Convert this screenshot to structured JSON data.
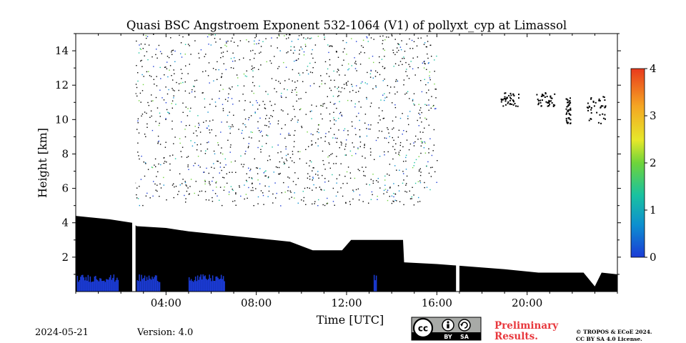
{
  "chart_data": {
    "type": "heatmap",
    "title": "Quasi BSC Angstroem Exponent 532-1064 (V1) of pollyxt_cyp at Limassol",
    "xlabel": "Time [UTC]",
    "ylabel": "Height [km]",
    "xlim_hours": [
      0,
      24
    ],
    "ylim_km": [
      0,
      15
    ],
    "x_ticks": [
      {
        "hour": 4,
        "label": "04:00"
      },
      {
        "hour": 8,
        "label": "08:00"
      },
      {
        "hour": 12,
        "label": "12:00"
      },
      {
        "hour": 16,
        "label": "16:00"
      },
      {
        "hour": 20,
        "label": "20:00"
      }
    ],
    "y_ticks": [
      {
        "value": 2,
        "label": "2"
      },
      {
        "value": 4,
        "label": "4"
      },
      {
        "value": 6,
        "label": "6"
      },
      {
        "value": 8,
        "label": "8"
      },
      {
        "value": 10,
        "label": "10"
      },
      {
        "value": 12,
        "label": "12"
      },
      {
        "value": 14,
        "label": "14"
      }
    ],
    "colorbar": {
      "min": 0,
      "max": 4,
      "ticks": [
        {
          "value": 0,
          "label": "0"
        },
        {
          "value": 1,
          "label": "1"
        },
        {
          "value": 2,
          "label": "2"
        },
        {
          "value": 3,
          "label": "3"
        },
        {
          "value": 4,
          "label": "4"
        }
      ],
      "colormap": [
        "#1b3bd6",
        "#0d8fd0",
        "#19c2a0",
        "#6fd43a",
        "#e6e82a",
        "#f5a623",
        "#e83a1d"
      ]
    },
    "data_gaps_hours": [
      [
        2.5,
        2.65
      ],
      [
        16.85,
        17.0
      ]
    ],
    "layer_top_profile_km": [
      [
        0.0,
        4.4
      ],
      [
        1.5,
        4.2
      ],
      [
        2.5,
        4.0
      ],
      [
        2.7,
        3.8
      ],
      [
        4.0,
        3.7
      ],
      [
        5.0,
        3.5
      ],
      [
        6.5,
        3.3
      ],
      [
        8.0,
        3.1
      ],
      [
        9.5,
        2.9
      ],
      [
        10.5,
        2.4
      ],
      [
        11.8,
        2.4
      ],
      [
        12.2,
        3.0
      ],
      [
        13.5,
        3.0
      ],
      [
        14.5,
        3.0
      ],
      [
        14.55,
        1.7
      ],
      [
        16.0,
        1.6
      ],
      [
        17.0,
        1.5
      ],
      [
        19.0,
        1.3
      ],
      [
        20.5,
        1.1
      ],
      [
        22.5,
        1.1
      ],
      [
        23.0,
        0.3
      ],
      [
        23.3,
        1.1
      ],
      [
        24.0,
        1.0
      ]
    ],
    "noise_region": {
      "hours": [
        2.5,
        16.0
      ],
      "km": [
        5.0,
        15.0
      ],
      "approx_value": 1.0
    },
    "cirrus_patches": [
      {
        "hours": [
          18.8,
          19.6
        ],
        "km": [
          10.8,
          11.6
        ]
      },
      {
        "hours": [
          20.4,
          21.2
        ],
        "km": [
          10.8,
          11.6
        ]
      },
      {
        "hours": [
          21.7,
          21.9
        ],
        "km": [
          9.8,
          11.4
        ]
      },
      {
        "hours": [
          22.6,
          23.5
        ],
        "km": [
          9.8,
          11.4
        ]
      }
    ],
    "low_values_hours": [
      [
        0.05,
        1.9
      ],
      [
        2.7,
        3.7
      ],
      [
        5.0,
        6.6
      ],
      [
        13.2,
        13.3
      ]
    ],
    "low_values_km": [
      0.0,
      1.0
    ],
    "low_values_value": 0.3
  },
  "footer": {
    "date": "2024-05-21",
    "version": "Version: 4.0",
    "license_badge": {
      "cc": "cc",
      "by": "BY",
      "sa": "SA"
    },
    "preliminary_line1": "Preliminary",
    "preliminary_line2": "Results.",
    "copyright_line1": "© TROPOS & ECoE 2024.",
    "copyright_line2": "CC BY SA 4.0 License."
  }
}
